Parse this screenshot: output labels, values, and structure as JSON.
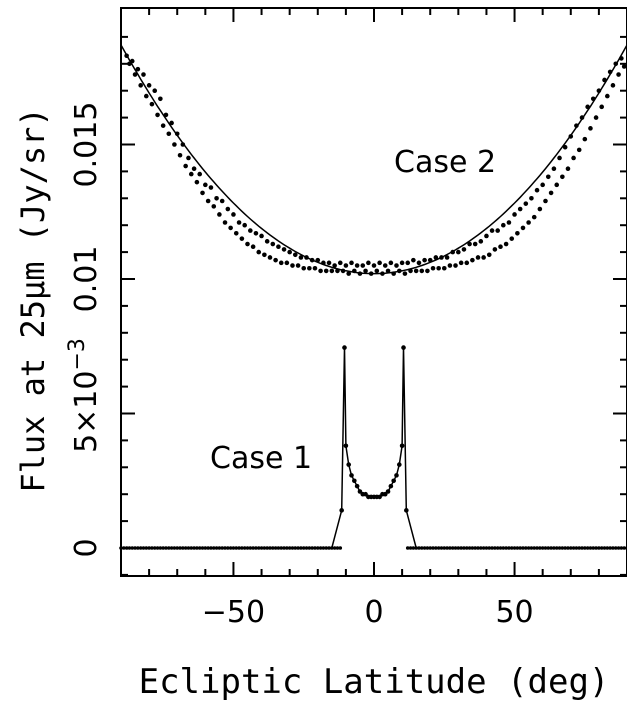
{
  "chart_data": {
    "type": "scatter",
    "xlabel": "Ecliptic Latitude (deg)",
    "ylabel": "Flux at 25μm (Jy/sr)",
    "xlim": [
      -90,
      90
    ],
    "ylim": [
      -0.001,
      0.0195
    ],
    "x_ticks": [
      -50,
      0,
      50
    ],
    "x_tick_labels": [
      "−50",
      "0",
      "50"
    ],
    "y_ticks": [
      0,
      0.005,
      0.01,
      0.015
    ],
    "y_tick_labels": [
      "0",
      "5×10",
      "0.01",
      "0.015"
    ],
    "y_tick_exponent": "−3",
    "annotations": [
      "Case 1",
      "Case 2"
    ],
    "series": [
      {
        "name": "Case 1",
        "model": "piecewise: 0 for |b|>10.5; peak 0.00745 at |b|≈10.5; minimum 0.0019 at b=0",
        "x": [
          -90,
          -85,
          -80,
          -75,
          -70,
          -65,
          -60,
          -55,
          -50,
          -45,
          -40,
          -35,
          -30,
          -25,
          -20,
          -15,
          -11.5,
          -10.5,
          -10,
          -9,
          -8,
          -7,
          -6,
          -5,
          -4,
          -3,
          -2,
          -1,
          0,
          1,
          2,
          3,
          4,
          5,
          6,
          7,
          8,
          9,
          10,
          10.5,
          11.5,
          15,
          20,
          25,
          30,
          35,
          40,
          45,
          50,
          55,
          60,
          65,
          70,
          75,
          80,
          85,
          90
        ],
        "y": [
          0,
          0,
          0,
          0,
          0,
          0,
          0,
          0,
          0,
          0,
          0,
          0,
          0,
          0,
          0,
          0,
          0.0014,
          0.00745,
          0.0038,
          0.0031,
          0.0027,
          0.0025,
          0.0023,
          0.0021,
          0.002,
          0.002,
          0.0019,
          0.0019,
          0.0019,
          0.0019,
          0.0019,
          0.002,
          0.002,
          0.0021,
          0.0023,
          0.0025,
          0.0027,
          0.0031,
          0.0038,
          0.00745,
          0.0014,
          0,
          0,
          0,
          0,
          0,
          0,
          0,
          0,
          0,
          0,
          0,
          0,
          0,
          0,
          0,
          0
        ]
      },
      {
        "name": "Case 2",
        "model": "y = 0.0102 + 0.0085 * (|b|/90)^2",
        "x": [
          -88,
          -86,
          -84,
          -82,
          -80,
          -78,
          -76,
          -74,
          -72,
          -70,
          -68,
          -66,
          -64,
          -62,
          -60,
          -58,
          -56,
          -54,
          -52,
          -50,
          -48,
          -46,
          -44,
          -42,
          -40,
          -38,
          -36,
          -34,
          -32,
          -30,
          -28,
          -26,
          -24,
          -22,
          -20,
          -18,
          -16,
          -14,
          -12,
          -10,
          -8,
          -6,
          -4,
          -2,
          0,
          2,
          4,
          6,
          8,
          10,
          12,
          14,
          16,
          18,
          20,
          22,
          24,
          26,
          28,
          30,
          32,
          34,
          36,
          38,
          40,
          42,
          44,
          46,
          48,
          50,
          52,
          54,
          56,
          58,
          60,
          62,
          64,
          66,
          68,
          70,
          72,
          74,
          76,
          78,
          80,
          82,
          84,
          86,
          88
        ],
        "y": [
          0.0183,
          0.0181,
          0.0178,
          0.0176,
          0.0172,
          0.017,
          0.0167,
          0.0161,
          0.0158,
          0.0154,
          0.015,
          0.0145,
          0.0141,
          0.0139,
          0.0135,
          0.0134,
          0.013,
          0.0129,
          0.0126,
          0.0124,
          0.0121,
          0.012,
          0.0118,
          0.0117,
          0.0116,
          0.0114,
          0.0113,
          0.0112,
          0.0111,
          0.011,
          0.0109,
          0.0108,
          0.0108,
          0.0107,
          0.0107,
          0.0106,
          0.0106,
          0.0105,
          0.0106,
          0.0105,
          0.0106,
          0.0105,
          0.0105,
          0.0106,
          0.0105,
          0.0106,
          0.0105,
          0.0106,
          0.0105,
          0.0106,
          0.0106,
          0.0107,
          0.0106,
          0.0107,
          0.0107,
          0.0108,
          0.0108,
          0.0108,
          0.011,
          0.011,
          0.0111,
          0.0113,
          0.0113,
          0.0114,
          0.0116,
          0.0118,
          0.0118,
          0.012,
          0.0121,
          0.0124,
          0.0126,
          0.0128,
          0.013,
          0.0133,
          0.0135,
          0.0138,
          0.0141,
          0.0145,
          0.0149,
          0.0153,
          0.0157,
          0.016,
          0.0164,
          0.0167,
          0.017,
          0.0174,
          0.0177,
          0.018,
          0.0182
        ],
        "y_scatter_alt": [
          0.018,
          0.0176,
          0.0172,
          0.0168,
          0.0165,
          0.0161,
          0.0157,
          0.0154,
          0.015,
          0.0146,
          0.0142,
          0.0139,
          0.0136,
          0.0132,
          0.0129,
          0.0127,
          0.0124,
          0.0121,
          0.0119,
          0.0117,
          0.0115,
          0.0113,
          0.0112,
          0.011,
          0.0109,
          0.0108,
          0.0107,
          0.0106,
          0.0106,
          0.0105,
          0.0105,
          0.0104,
          0.0104,
          0.0104,
          0.0103,
          0.0103,
          0.0103,
          0.0103,
          0.0103,
          0.0102,
          0.0103,
          0.0102,
          0.0103,
          0.0102,
          0.0103,
          0.0102,
          0.0103,
          0.0102,
          0.0103,
          0.0102,
          0.0103,
          0.0103,
          0.0103,
          0.0103,
          0.0104,
          0.0104,
          0.0104,
          0.0105,
          0.0105,
          0.0106,
          0.0106,
          0.0107,
          0.0108,
          0.0108,
          0.0109,
          0.0111,
          0.0112,
          0.0113,
          0.0115,
          0.0117,
          0.0119,
          0.0121,
          0.0123,
          0.0126,
          0.0129,
          0.0132,
          0.0135,
          0.0138,
          0.0141,
          0.0145,
          0.0148,
          0.0152,
          0.0156,
          0.016,
          0.0164,
          0.0168,
          0.0172,
          0.0176,
          0.0179
        ]
      }
    ],
    "grid": false,
    "legend": "none"
  }
}
